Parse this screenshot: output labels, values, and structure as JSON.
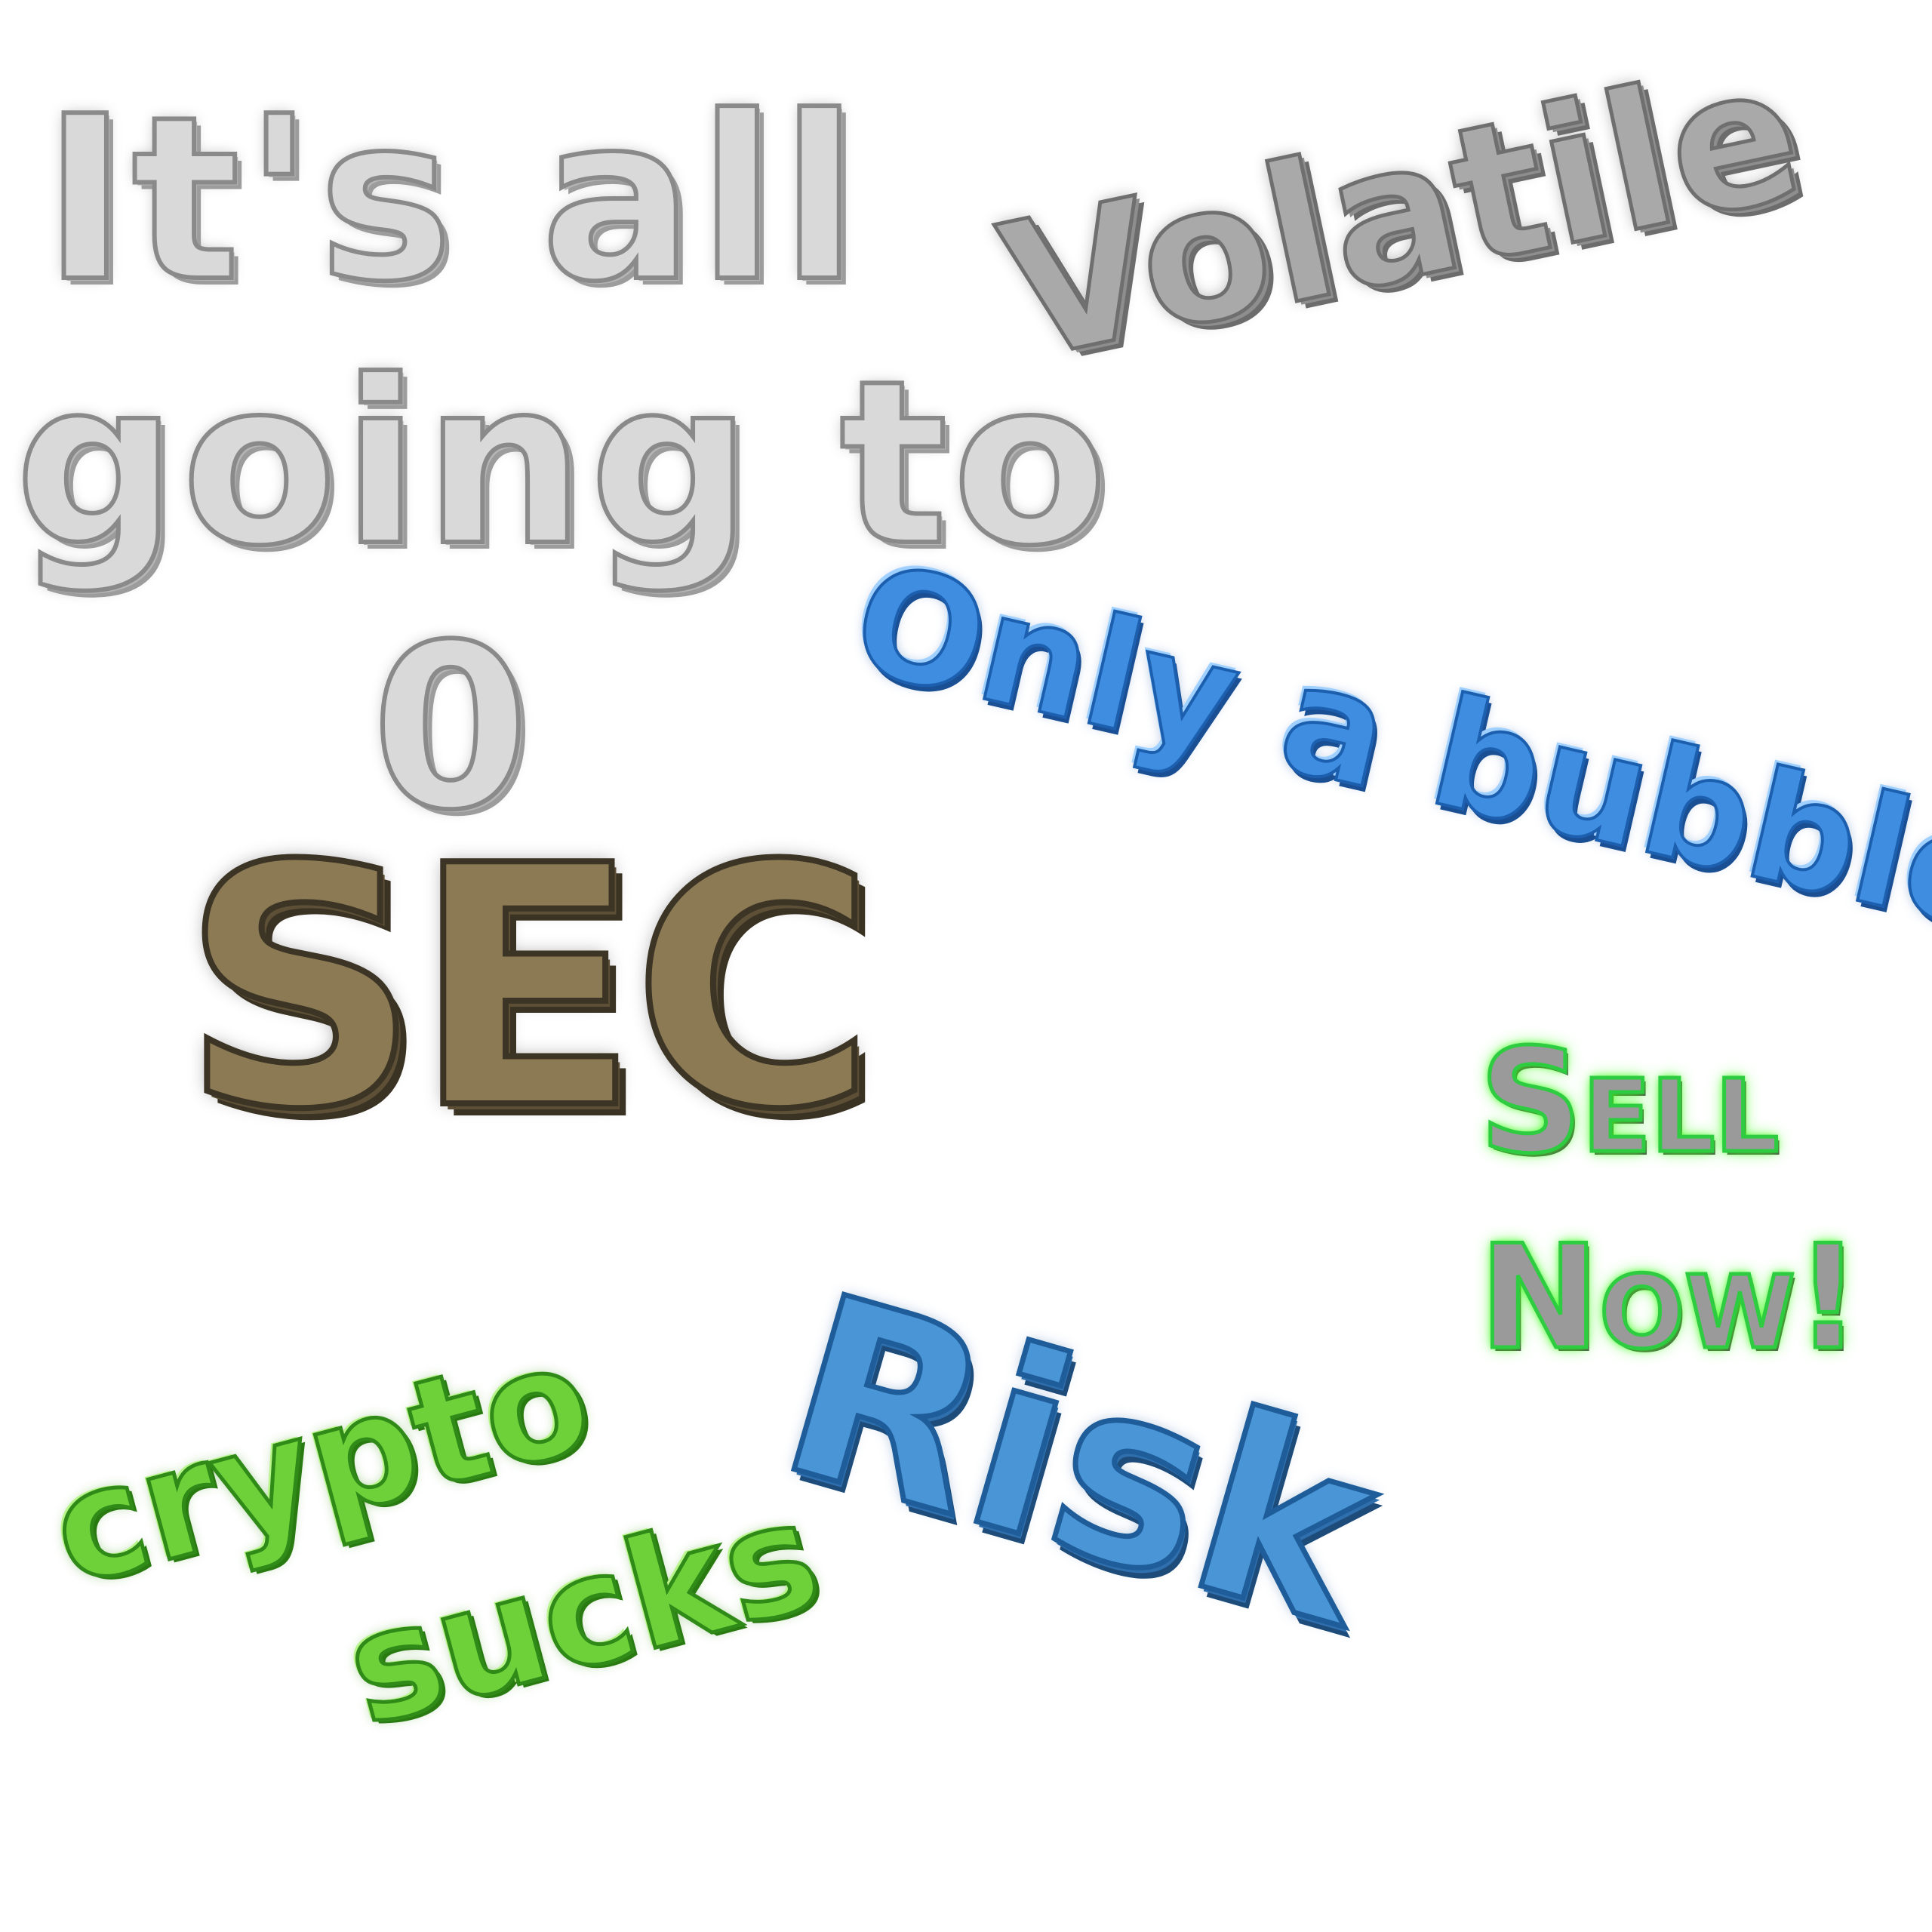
{
  "phrases": {
    "zero": {
      "line1": "It's all",
      "line2": "going to",
      "line3": "0"
    },
    "volatile": "Volatile",
    "bubble": "Only a bubble",
    "sec": "SEC",
    "sell": {
      "line1": "Sell",
      "line2": "Now!"
    },
    "risk": "Risk",
    "crypto": {
      "line1": "crypto",
      "line2": "sucks"
    }
  },
  "colors": {
    "background": "#ffffff",
    "paper_gray": "#d9d9d9",
    "stone_gray": "#a9a9a9",
    "bubble_blue": "#3f8de0",
    "snake_brown": "#8c7a55",
    "neon_green": "#39ff14",
    "rope_blue": "#4a95d6",
    "slime_green": "#6fd13a"
  }
}
